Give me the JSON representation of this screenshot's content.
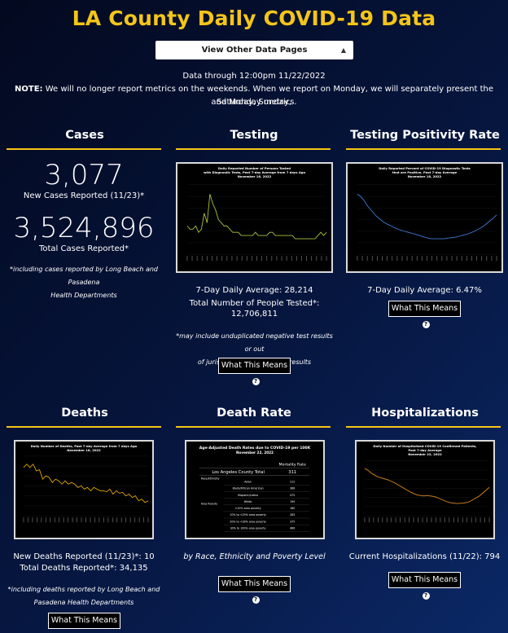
{
  "header": {
    "title": "LA County Daily COVID-19 Data",
    "select_label": "View Other Data Pages",
    "data_through": "Data through 12:00pm 11/22/2022",
    "note_label": "NOTE:",
    "note_line1": " We will no longer report metrics on the weekends. When we report on Monday, we will separately present the Saturday, Sunday,",
    "note_line2": "and Monday metrics."
  },
  "cases": {
    "heading": "Cases",
    "new_value": "3,077",
    "new_label": "New Cases Reported (11/23)*",
    "total_value": "3,524,896",
    "total_label": "Total Cases Reported*",
    "footnote_1": "*including cases reported by Long Beach and Pasadena",
    "footnote_2": "Health Departments"
  },
  "testing": {
    "heading": "Testing",
    "chart_title_1": "Daily Reported Number of Persons Tested",
    "chart_title_2": "with Diagnostic Tests, Past 7-day Average from 7 days Ago",
    "chart_title_3": "November 16, 2022",
    "avg_line": "7-Day Daily Average: 28,214",
    "total_line_1": "Total Number of People Tested*:",
    "total_line_2": "12,706,811",
    "footnote_1": "*may include unduplicated negative test results or out",
    "footnote_2": "of jurisdiction negative test results",
    "button": "What This Means"
  },
  "positivity": {
    "heading": "Testing Positivity Rate",
    "chart_title_1": "Daily Reported Percent of COVID-19 Diagnostic Tests",
    "chart_title_2": "that are Positive, Past 7-day Average",
    "chart_title_3": "November 16, 2022",
    "avg_line": "7-Day Daily Average: 6.47%",
    "button": "What This Means"
  },
  "deaths": {
    "heading": "Deaths",
    "chart_title_1": "Daily Number of Deaths, Past 7-day Average from 7 days Ago",
    "chart_title_2": "November 16, 2022",
    "new_line": "New Deaths Reported (11/23)*: 10",
    "total_line": "Total Deaths Reported*: 34,135",
    "footnote_1": "*including deaths reported by Long Beach and",
    "footnote_2": "Pasadena Health Departments",
    "button": "What This Means"
  },
  "death_rate": {
    "heading": "Death Rate",
    "table_title_1": "Age-Adjusted Death Rates due to COVID-19 per 100K",
    "table_title_2": "November 22, 2022",
    "col_header": "Mortality Rate",
    "county_label": "Los Angeles County Total",
    "county_value": "311",
    "race_group": "Race/Ethnicity",
    "poverty_group": "Area Poverty",
    "rows": [
      {
        "label": "Asian",
        "value": "212"
      },
      {
        "label": "Black/African American",
        "value": "368"
      },
      {
        "label": "Hispanic/Latino",
        "value": "475"
      },
      {
        "label": "White",
        "value": "199"
      },
      {
        "label": "<10% area poverty",
        "value": "180"
      },
      {
        "label": "10% to <20% area poverty",
        "value": "285"
      },
      {
        "label": "20% to <30% area poverty",
        "value": "375"
      },
      {
        "label": "30% to 100% area poverty",
        "value": "466"
      }
    ],
    "caption": "by Race, Ethnicity and Poverty Level",
    "button": "What This Means"
  },
  "hospitalizations": {
    "heading": "Hospitalizations",
    "chart_title_1": "Daily Number of Hospitalized COVID-19 Confirmed Patients,",
    "chart_title_2": "Past 7-day Average",
    "chart_title_3": "November 22, 2022",
    "current_line": "Current Hospitalizations (11/22): 794",
    "button": "What This Means"
  },
  "colors": {
    "accent": "#f5c518",
    "testing_line": "#a8c43a",
    "positivity_line": "#3f7bd6",
    "deaths_line": "#e0a800",
    "hosp_line": "#e08a1a"
  },
  "chart_data": [
    {
      "type": "line",
      "title": "Daily Reported Number of Persons Tested with Diagnostic Tests, Past 7-day Average from 7 days Ago",
      "subtitle": "November 16, 2022",
      "values": [
        34,
        33,
        33,
        34,
        32,
        33,
        38,
        35,
        44,
        41,
        39,
        36,
        35,
        34,
        34,
        33,
        32,
        32,
        32,
        31,
        31,
        31,
        31,
        31,
        32,
        31,
        31,
        31,
        31,
        32,
        32,
        31,
        31,
        31,
        31,
        31,
        31,
        31,
        30,
        30,
        30,
        30,
        30,
        30,
        30,
        30,
        31,
        32,
        31,
        32
      ]
    },
    {
      "type": "line",
      "title": "Daily Reported Percent of COVID-19 Diagnostic Tests that are Positive, Past 7-day Average",
      "subtitle": "November 16, 2022",
      "values": [
        15.5,
        15,
        14.2,
        13,
        12.1,
        11.3,
        10.4,
        9.8,
        9.2,
        8.7,
        8.3,
        8.0,
        7.6,
        7.3,
        7.0,
        6.8,
        6.6,
        6.4,
        6.2,
        6.0,
        5.8,
        5.5,
        5.3,
        5.1,
        5.0,
        5.0,
        5.0,
        5.0,
        5.0,
        5.1,
        5.2,
        5.3,
        5.4,
        5.6,
        5.8,
        6.0,
        6.2,
        6.5,
        6.8,
        7.2,
        7.6,
        8.1,
        8.7,
        9.3,
        9.9,
        10.6
      ]
    },
    {
      "type": "line",
      "title": "Daily Number of Deaths, Past 7-day Average from 7 days Ago",
      "subtitle": "November 16, 2022",
      "values": [
        15.5,
        16.5,
        15.5,
        16.5,
        14.5,
        14.8,
        12.0,
        13.0,
        12.5,
        11.0,
        12.0,
        11.5,
        10.5,
        11.5,
        10.5,
        11.0,
        10.5,
        9.5,
        10.0,
        9.0,
        9.5,
        8.5,
        9.5,
        9.0,
        8.5,
        8.5,
        8.2,
        9.0,
        7.5,
        8.5,
        7.8,
        8.0,
        7.0,
        7.5,
        6.5,
        7.0,
        5.5,
        6.0,
        5.0,
        5.5
      ]
    },
    {
      "type": "line",
      "title": "Daily Number of Hospitalized COVID-19 Confirmed Patients, Past 7-day Average",
      "subtitle": "November 22, 2022",
      "values": [
        1190,
        1170,
        1140,
        1120,
        1100,
        1090,
        1080,
        1070,
        1055,
        1040,
        1020,
        1000,
        980,
        960,
        940,
        925,
        910,
        905,
        900,
        905,
        900,
        895,
        885,
        870,
        855,
        840,
        830,
        825,
        820,
        822,
        825,
        830,
        840,
        860,
        880,
        900,
        930,
        960,
        990
      ]
    }
  ]
}
